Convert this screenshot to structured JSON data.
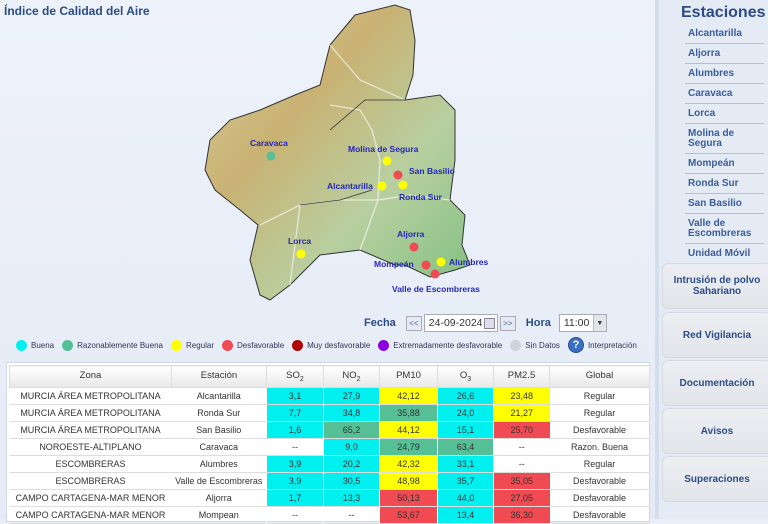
{
  "title": "Índice de Calidad del Aire",
  "colors": {
    "buena": "#00f0f0",
    "razonable": "#55bf95",
    "regular": "#ffff00",
    "desfavorable": "#f04a52",
    "muy": "#b00000",
    "extrem": "#8a00e0",
    "sindatos": "#d0d4da"
  },
  "map": {
    "stations": [
      {
        "name": "Caravaca",
        "level": "razonable"
      },
      {
        "name": "Molina de Segura",
        "level": "regular"
      },
      {
        "name": "San Basilio",
        "level": "desfavorable"
      },
      {
        "name": "Alcantarilla",
        "level": "regular"
      },
      {
        "name": "Ronda Sur",
        "level": "regular"
      },
      {
        "name": "Lorca",
        "level": "regular"
      },
      {
        "name": "Aljorra",
        "level": "desfavorable"
      },
      {
        "name": "Mompeán",
        "level": "desfavorable"
      },
      {
        "name": "Alumbres",
        "level": "regular"
      },
      {
        "name": "Valle de Escombreras",
        "level": "desfavorable"
      }
    ]
  },
  "controls": {
    "fecha_label": "Fecha",
    "prev": "<<",
    "date": "24-09-2024",
    "next": ">>",
    "hora_label": "Hora",
    "hora": "11:00"
  },
  "legend": [
    "Buena",
    "Razonablemente Buena",
    "Regular",
    "Desfavorable",
    "Muy desfavorable",
    "Extremadamente desfavorable",
    "Sin Datos"
  ],
  "legend_help": "Interpretación",
  "table": {
    "headers": [
      "Zona",
      "Estación",
      "SO",
      "NO",
      "PM10",
      "O",
      "PM2.5",
      "Global"
    ],
    "header_subs": [
      "",
      "",
      "2",
      "2",
      "",
      "3",
      "",
      ""
    ],
    "rows": [
      {
        "zona": "MURCIA ÁREA METROPOLITANA",
        "estacion": "Alcantarilla",
        "cells": [
          [
            "3,1",
            "buena"
          ],
          [
            "27,9",
            "buena"
          ],
          [
            "42,12",
            "regular"
          ],
          [
            "26,6",
            "buena"
          ],
          [
            "23,48",
            "regular"
          ]
        ],
        "global": "Regular"
      },
      {
        "zona": "MURCIA ÁREA METROPOLITANA",
        "estacion": "Ronda Sur",
        "cells": [
          [
            "7,7",
            "buena"
          ],
          [
            "34,8",
            "buena"
          ],
          [
            "35,88",
            "razonable"
          ],
          [
            "24,0",
            "buena"
          ],
          [
            "21,27",
            "regular"
          ]
        ],
        "global": "Regular"
      },
      {
        "zona": "MURCIA ÁREA METROPOLITANA",
        "estacion": "San Basilio",
        "cells": [
          [
            "1,6",
            "buena"
          ],
          [
            "65,2",
            "razonable"
          ],
          [
            "44,12",
            "regular"
          ],
          [
            "15,1",
            "buena"
          ],
          [
            "25,70",
            "desfavorable"
          ]
        ],
        "global": "Desfavorable"
      },
      {
        "zona": "NOROESTE-ALTIPLANO",
        "estacion": "Caravaca",
        "cells": [
          [
            "--",
            ""
          ],
          [
            "9,0",
            "buena"
          ],
          [
            "24,79",
            "razonable"
          ],
          [
            "63,4",
            "razonable"
          ],
          [
            "--",
            ""
          ]
        ],
        "global": "Razon. Buena"
      },
      {
        "zona": "ESCOMBRERAS",
        "estacion": "Alumbres",
        "cells": [
          [
            "3,9",
            "buena"
          ],
          [
            "20,2",
            "buena"
          ],
          [
            "42,32",
            "regular"
          ],
          [
            "33,1",
            "buena"
          ],
          [
            "--",
            ""
          ]
        ],
        "global": "Regular"
      },
      {
        "zona": "ESCOMBRERAS",
        "estacion": "Valle de Escombreras",
        "cells": [
          [
            "3,9",
            "buena"
          ],
          [
            "30,5",
            "buena"
          ],
          [
            "48,98",
            "regular"
          ],
          [
            "35,7",
            "buena"
          ],
          [
            "35,05",
            "desfavorable"
          ]
        ],
        "global": "Desfavorable"
      },
      {
        "zona": "CAMPO CARTAGENA-MAR MENOR",
        "estacion": "Aljorra",
        "cells": [
          [
            "1,7",
            "buena"
          ],
          [
            "13,3",
            "buena"
          ],
          [
            "50,13",
            "desfavorable"
          ],
          [
            "44,0",
            "buena"
          ],
          [
            "27,05",
            "desfavorable"
          ]
        ],
        "global": "Desfavorable"
      },
      {
        "zona": "CAMPO CARTAGENA-MAR MENOR",
        "estacion": "Mompean",
        "cells": [
          [
            "--",
            ""
          ],
          [
            "--",
            ""
          ],
          [
            "53,67",
            "desfavorable"
          ],
          [
            "13,4",
            "buena"
          ],
          [
            "36,30",
            "desfavorable"
          ]
        ],
        "global": "Desfavorable"
      }
    ]
  },
  "sidebar": {
    "heading": "Estaciones",
    "stations": [
      "Alcantarilla",
      "Aljorra",
      "Alumbres",
      "Caravaca",
      "Lorca",
      "Molina de Segura",
      "Mompeán",
      "Ronda Sur",
      "San Basilio",
      "Valle de Escombreras",
      "Unidad Móvil"
    ],
    "nav": [
      "Intrusión de polvo Sahariano",
      "Red Vigilancia",
      "Documentación",
      "Avisos",
      "Superaciones"
    ]
  }
}
